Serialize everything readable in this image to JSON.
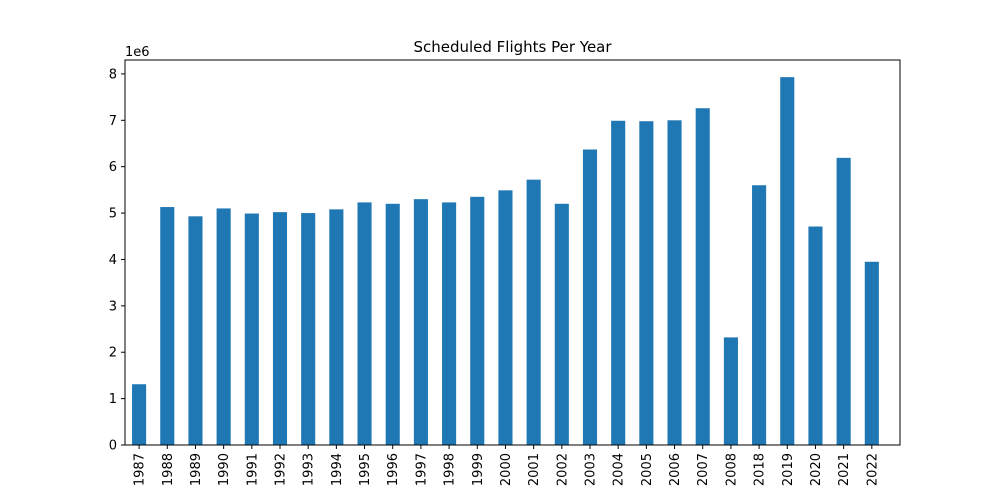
{
  "chart_data": {
    "type": "bar",
    "title": "Scheduled Flights Per Year",
    "xlabel": "",
    "ylabel": "",
    "y_multiplier_label": "1e6",
    "ylim": [
      0,
      8300000
    ],
    "y_ticks": [
      0,
      1000000,
      2000000,
      3000000,
      4000000,
      5000000,
      6000000,
      7000000,
      8000000
    ],
    "y_tick_labels": [
      "0",
      "1",
      "2",
      "3",
      "4",
      "5",
      "6",
      "7",
      "8"
    ],
    "categories": [
      "1987",
      "1988",
      "1989",
      "1990",
      "1991",
      "1992",
      "1993",
      "1994",
      "1995",
      "1996",
      "1997",
      "1998",
      "1999",
      "2000",
      "2001",
      "2002",
      "2003",
      "2004",
      "2005",
      "2006",
      "2007",
      "2008",
      "2018",
      "2019",
      "2020",
      "2021",
      "2022"
    ],
    "values": [
      1310000,
      5130000,
      4930000,
      5100000,
      4990000,
      5020000,
      5000000,
      5080000,
      5230000,
      5200000,
      5300000,
      5230000,
      5350000,
      5490000,
      5720000,
      5200000,
      6370000,
      6990000,
      6980000,
      7000000,
      7260000,
      2320000,
      5600000,
      7930000,
      4710000,
      6190000,
      3950000
    ],
    "bar_color": "#1f77b4",
    "grid": false,
    "legend": "none"
  }
}
